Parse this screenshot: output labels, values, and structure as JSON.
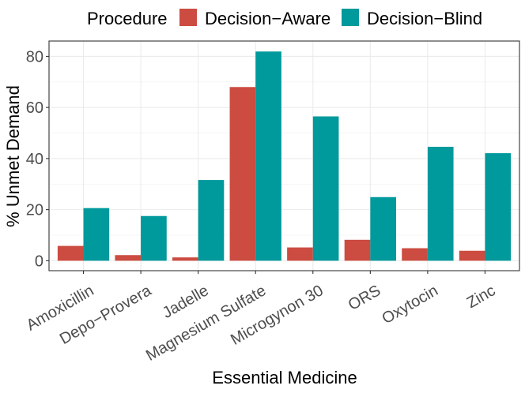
{
  "chart_data": {
    "type": "bar",
    "title": "",
    "xlabel": "Essential Medicine",
    "ylabel": "% Unmet Demand",
    "categories": [
      "Amoxicillin",
      "Depo−Provera",
      "Jadelle",
      "Magnesium Sulfate",
      "Microgynon 30",
      "ORS",
      "Oxytocin",
      "Zinc"
    ],
    "series": [
      {
        "name": "Decision−Aware",
        "color": "#cc4c41",
        "values": [
          5.8,
          2.2,
          1.3,
          68,
          5.2,
          8.2,
          4.9,
          3.9
        ]
      },
      {
        "name": "Decision−Blind",
        "color": "#00999c",
        "values": [
          20.6,
          17.5,
          31.6,
          81.9,
          56.5,
          24.9,
          44.6,
          42.1
        ]
      }
    ],
    "ylim": [
      -3.9,
      86
    ],
    "yticks": [
      0,
      20,
      40,
      60,
      80
    ],
    "legend": {
      "title": "Procedure",
      "position": "top"
    },
    "grid": true
  }
}
